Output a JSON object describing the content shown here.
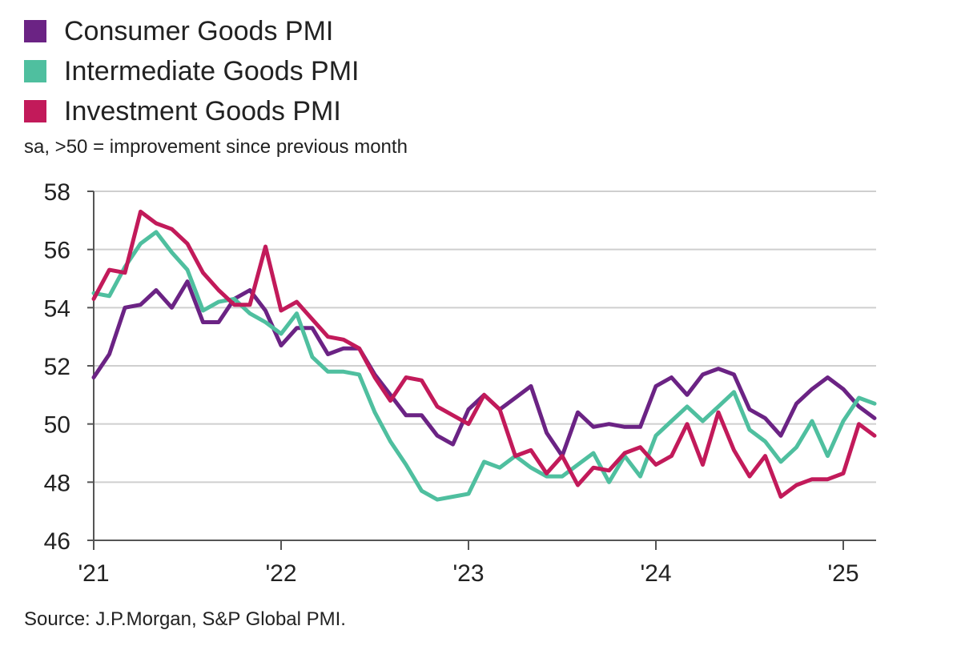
{
  "chart_data": {
    "type": "line",
    "subtitle": "sa, >50 = improvement since previous month",
    "source": "Source: J.P.Morgan, S&P Global PMI.",
    "x_start": "2021-01",
    "x_ticks": [
      {
        "month_index": 0,
        "label": "'21"
      },
      {
        "month_index": 12,
        "label": "'22"
      },
      {
        "month_index": 24,
        "label": "'23"
      },
      {
        "month_index": 36,
        "label": "'24"
      },
      {
        "month_index": 48,
        "label": "'25"
      }
    ],
    "x_max_index": 50,
    "ylim": [
      46,
      58
    ],
    "y_ticks": [
      46,
      48,
      50,
      52,
      54,
      56,
      58
    ],
    "grid": true,
    "legend_position": "top-left",
    "series": [
      {
        "name": "Consumer Goods PMI",
        "color": "#6b2384",
        "values": [
          51.6,
          52.4,
          54.0,
          54.1,
          54.6,
          54.0,
          54.9,
          53.5,
          53.5,
          54.3,
          54.6,
          53.9,
          52.7,
          53.3,
          53.3,
          52.4,
          52.6,
          52.6,
          51.7,
          51.0,
          50.3,
          50.3,
          49.6,
          49.3,
          50.5,
          51.0,
          50.5,
          50.9,
          51.3,
          49.7,
          48.9,
          50.4,
          49.9,
          50.0,
          49.9,
          49.9,
          51.3,
          51.6,
          51.0,
          51.7,
          51.9,
          51.7,
          50.5,
          50.2,
          49.6,
          50.7,
          51.2,
          51.6,
          51.2,
          50.6,
          50.2
        ]
      },
      {
        "name": "Intermediate Goods PMI",
        "color": "#4fbf9f",
        "values": [
          54.5,
          54.4,
          55.4,
          56.2,
          56.6,
          55.9,
          55.3,
          53.9,
          54.2,
          54.3,
          53.8,
          53.5,
          53.1,
          53.8,
          52.3,
          51.8,
          51.8,
          51.7,
          50.4,
          49.4,
          48.6,
          47.7,
          47.4,
          47.5,
          47.6,
          48.7,
          48.5,
          48.9,
          48.5,
          48.2,
          48.2,
          48.6,
          49.0,
          48.0,
          48.9,
          48.2,
          49.6,
          50.1,
          50.6,
          50.1,
          50.6,
          51.1,
          49.8,
          49.4,
          48.7,
          49.2,
          50.1,
          48.9,
          50.1,
          50.9,
          50.7
        ]
      },
      {
        "name": "Investment Goods PMI",
        "color": "#c21a5a",
        "values": [
          54.3,
          55.3,
          55.2,
          57.3,
          56.9,
          56.7,
          56.2,
          55.2,
          54.6,
          54.1,
          54.1,
          56.1,
          53.9,
          54.2,
          53.6,
          53.0,
          52.9,
          52.6,
          51.6,
          50.8,
          51.6,
          51.5,
          50.6,
          50.3,
          50.0,
          51.0,
          50.5,
          48.9,
          49.1,
          48.3,
          48.9,
          47.9,
          48.5,
          48.4,
          49.0,
          49.2,
          48.6,
          48.9,
          50.0,
          48.6,
          50.4,
          49.1,
          48.2,
          48.9,
          47.5,
          47.9,
          48.1,
          48.1,
          48.3,
          50.0,
          49.6
        ]
      }
    ]
  }
}
